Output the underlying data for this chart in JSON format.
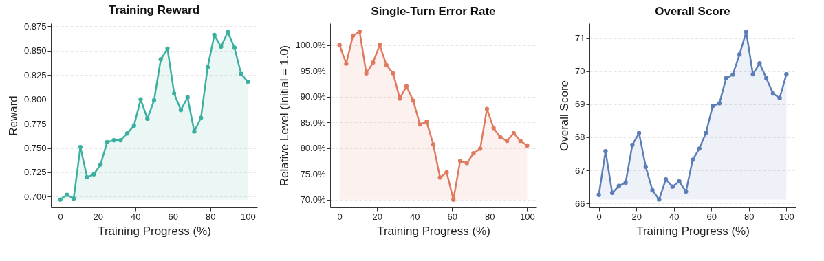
{
  "chart_data": [
    {
      "type": "area",
      "title": "Training Reward",
      "xlabel": "Training Progress (%)",
      "ylabel": "Reward",
      "marker": "circle",
      "grid": "y",
      "x": [
        0,
        3.57,
        7.14,
        10.71,
        14.29,
        17.86,
        21.43,
        25,
        28.57,
        32.14,
        35.71,
        39.29,
        42.86,
        46.43,
        50,
        53.57,
        57.14,
        60.71,
        64.29,
        67.86,
        71.43,
        75,
        78.57,
        82.14,
        85.71,
        89.29,
        92.86,
        96.43,
        100
      ],
      "series": [
        {
          "color": "#3bb0a0",
          "values": [
            0.697,
            0.702,
            0.698,
            0.751,
            0.72,
            0.723,
            0.733,
            0.756,
            0.758,
            0.758,
            0.765,
            0.773,
            0.8,
            0.78,
            0.799,
            0.841,
            0.852,
            0.806,
            0.789,
            0.802,
            0.767,
            0.781,
            0.833,
            0.866,
            0.854,
            0.869,
            0.853,
            0.826,
            0.818
          ]
        }
      ],
      "xlim": [
        -5,
        105
      ],
      "xticks": [
        0,
        20,
        40,
        60,
        80,
        100
      ],
      "ylim": [
        0.689,
        0.878
      ],
      "yticks": [
        {
          "value": 0.7,
          "label": "0.700"
        },
        {
          "value": 0.725,
          "label": "0.725"
        },
        {
          "value": 0.75,
          "label": "0.750"
        },
        {
          "value": 0.775,
          "label": "0.775"
        },
        {
          "value": 0.8,
          "label": "0.800"
        },
        {
          "value": 0.825,
          "label": "0.825"
        },
        {
          "value": 0.85,
          "label": "0.850"
        },
        {
          "value": 0.875,
          "label": "0.875"
        }
      ]
    },
    {
      "type": "area",
      "title": "Single-Turn Error Rate",
      "xlabel": "Training Progress (%)",
      "ylabel": "Relative Level (Initial = 1.0)",
      "marker": "circle",
      "grid": "y",
      "x": [
        0,
        3.57,
        7.14,
        10.71,
        14.29,
        17.86,
        21.43,
        25,
        28.57,
        32.14,
        35.71,
        39.29,
        42.86,
        46.43,
        50,
        53.57,
        57.14,
        60.71,
        64.29,
        67.86,
        71.43,
        75,
        78.57,
        82.14,
        85.71,
        89.29,
        92.86,
        96.43,
        100
      ],
      "series": [
        {
          "color": "#e07a5f",
          "values": [
            100.0,
            96.4,
            101.8,
            102.6,
            94.5,
            96.6,
            100.0,
            96.1,
            94.5,
            89.6,
            92.0,
            89.2,
            84.6,
            85.1,
            80.7,
            74.3,
            75.3,
            70.0,
            77.5,
            77.1,
            79.0,
            79.9,
            87.6,
            83.9,
            82.1,
            81.4,
            82.9,
            81.4,
            80.5
          ]
        }
      ],
      "ref_lines": [
        {
          "axis": "y",
          "value": 100,
          "color": "#808080",
          "line_style": "dotted"
        }
      ],
      "xlim": [
        -5,
        105
      ],
      "xticks": [
        0,
        20,
        40,
        60,
        80,
        100
      ],
      "ylim": [
        68.5,
        104.2
      ],
      "yticks": [
        {
          "value": 70,
          "label": "70.0%"
        },
        {
          "value": 75,
          "label": "75.0%"
        },
        {
          "value": 80,
          "label": "80.0%"
        },
        {
          "value": 85,
          "label": "85.0%"
        },
        {
          "value": 90,
          "label": "90.0%"
        },
        {
          "value": 95,
          "label": "95.0%"
        },
        {
          "value": 100,
          "label": "100.0%"
        }
      ]
    },
    {
      "type": "area",
      "title": "Overall Score",
      "xlabel": "Training Progress (%)",
      "ylabel": "Overall Score",
      "marker": "circle",
      "grid": "y",
      "x": [
        0,
        3.57,
        7.14,
        10.71,
        14.29,
        17.86,
        21.43,
        25,
        28.57,
        32.14,
        35.71,
        39.29,
        42.86,
        46.43,
        50,
        53.57,
        57.14,
        60.71,
        64.29,
        67.86,
        71.43,
        75,
        78.57,
        82.14,
        85.71,
        89.29,
        92.86,
        96.43,
        100
      ],
      "series": [
        {
          "color": "#5b7db8",
          "values": [
            66.26,
            67.58,
            66.32,
            66.53,
            66.63,
            67.77,
            68.13,
            67.11,
            66.4,
            66.12,
            66.73,
            66.51,
            66.67,
            66.36,
            67.32,
            67.66,
            68.14,
            68.95,
            69.03,
            69.79,
            69.9,
            70.51,
            71.19,
            69.91,
            70.24,
            69.79,
            69.33,
            69.19,
            69.91
          ]
        }
      ],
      "xlim": [
        -5,
        105
      ],
      "xticks": [
        0,
        20,
        40,
        60,
        80,
        100
      ],
      "ylim": [
        65.88,
        71.45
      ],
      "yticks": [
        66,
        67,
        68,
        69,
        70,
        71
      ]
    }
  ]
}
